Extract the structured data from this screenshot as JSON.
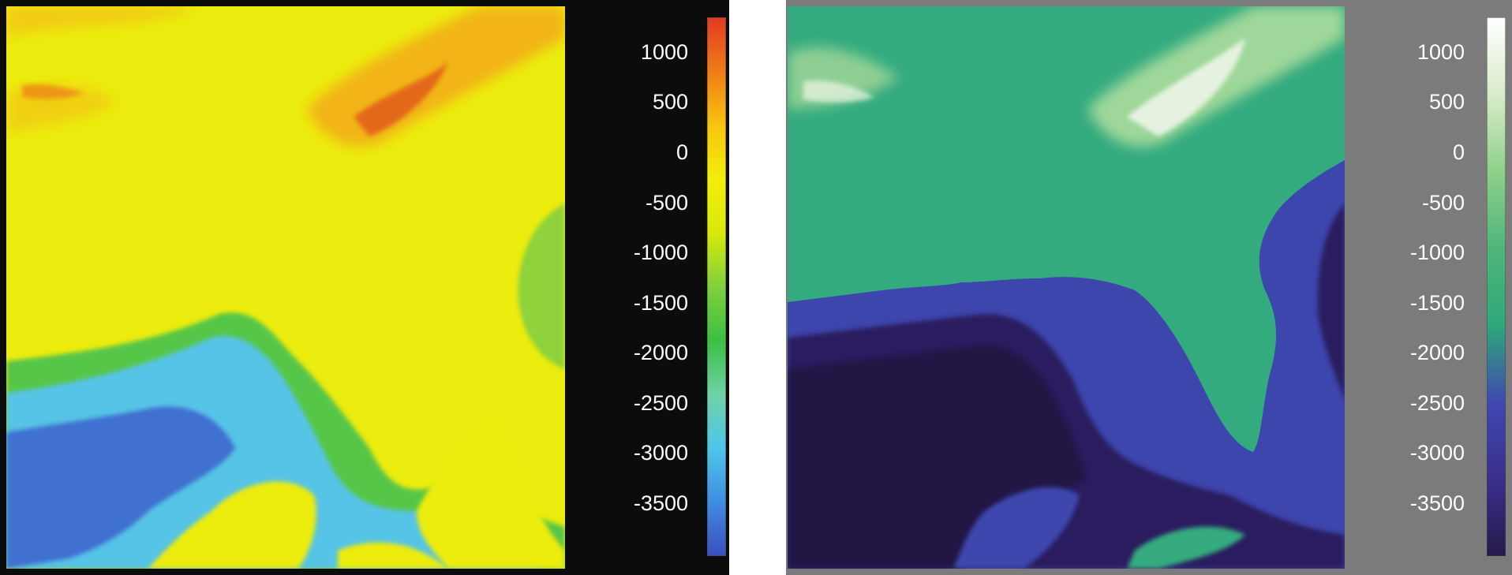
{
  "figures": [
    {
      "id": "left",
      "colormap": "rainbow",
      "background_color": "#0c0c0c",
      "colorbar_stops": [
        "#e33a22",
        "#f07c16",
        "#f7c40e",
        "#f4ee0a",
        "#d8e90a",
        "#7fd13c",
        "#3cbf43",
        "#6fd1a6",
        "#4fc6e9",
        "#3f8de0",
        "#3a4fbe"
      ],
      "tick_labels": [
        "1000",
        "500",
        "0",
        "-500",
        "-1000",
        "-1500",
        "-2000",
        "-2500",
        "-3000",
        "-3500"
      ]
    },
    {
      "id": "right",
      "colormap": "earth-ocean",
      "background_color": "#7b7b7b",
      "colorbar_stops": [
        "#ffffff",
        "#d9ecc9",
        "#8fd08a",
        "#4fb67a",
        "#2fa87a",
        "#4048b0",
        "#3a2f8c",
        "#261a4a"
      ],
      "tick_labels": [
        "1000",
        "500",
        "0",
        "-500",
        "-1000",
        "-1500",
        "-2000",
        "-2500",
        "-3000",
        "-3500"
      ]
    }
  ]
}
